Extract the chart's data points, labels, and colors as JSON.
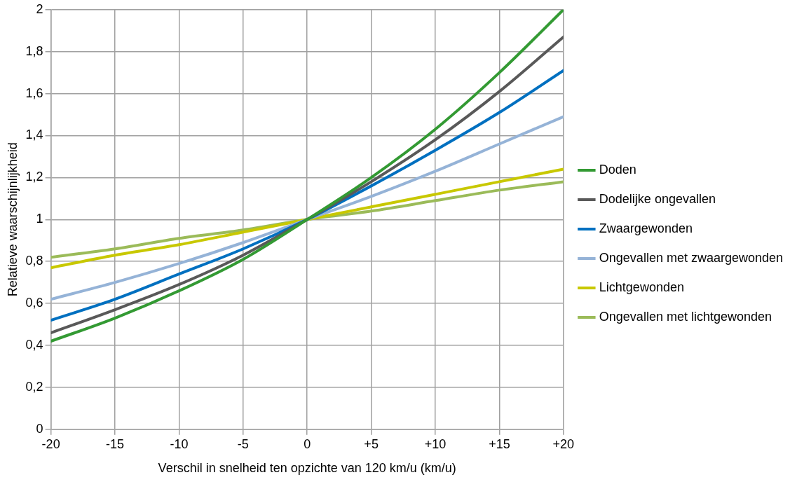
{
  "chart_data": {
    "type": "line",
    "xlabel": "Verschil in snelheid ten opzichte van 120 km/u (km/u)",
    "ylabel": "Relatieve waarschijnlijkheid",
    "x": [
      -20,
      -15,
      -10,
      -5,
      0,
      5,
      10,
      15,
      20
    ],
    "series": [
      {
        "name": "Doden",
        "color": "#339a33",
        "values": [
          0.42,
          0.53,
          0.66,
          0.81,
          1,
          1.2,
          1.43,
          1.7,
          2.0
        ]
      },
      {
        "name": "Dodelijke ongevallen",
        "color": "#595959",
        "values": [
          0.46,
          0.57,
          0.69,
          0.83,
          1,
          1.18,
          1.38,
          1.61,
          1.87
        ]
      },
      {
        "name": "Zwaargewonden",
        "color": "#0070c0",
        "values": [
          0.52,
          0.62,
          0.74,
          0.86,
          1,
          1.16,
          1.33,
          1.51,
          1.71
        ]
      },
      {
        "name": "Ongevallen met zwaargewonden",
        "color": "#95b3d7",
        "values": [
          0.62,
          0.7,
          0.79,
          0.89,
          1,
          1.11,
          1.23,
          1.36,
          1.49
        ]
      },
      {
        "name": "Lichtgewonden",
        "color": "#c8c800",
        "values": [
          0.77,
          0.83,
          0.88,
          0.94,
          1,
          1.06,
          1.12,
          1.18,
          1.24
        ]
      },
      {
        "name": "Ongevallen met lichtgewonden",
        "color": "#9bbb59",
        "values": [
          0.82,
          0.86,
          0.91,
          0.95,
          1,
          1.04,
          1.09,
          1.14,
          1.18
        ]
      }
    ],
    "xlim": [
      -20,
      20
    ],
    "xticks": [
      -20,
      -15,
      -10,
      -5,
      0,
      {
        "value": 5,
        "label": "+5"
      },
      {
        "value": 10,
        "label": "+10"
      },
      {
        "value": 15,
        "label": "+15"
      },
      {
        "value": 20,
        "label": "+20"
      }
    ],
    "ylim": [
      0,
      2
    ],
    "yticks": [
      0,
      {
        "value": 0.2,
        "label": "0,2"
      },
      {
        "value": 0.4,
        "label": "0,4"
      },
      {
        "value": 0.6,
        "label": "0,6"
      },
      {
        "value": 0.8,
        "label": "0,8"
      },
      1,
      {
        "value": 1.2,
        "label": "1,2"
      },
      {
        "value": 1.4,
        "label": "1,4"
      },
      {
        "value": 1.6,
        "label": "1,6"
      },
      {
        "value": 1.8,
        "label": "1,8"
      },
      2
    ],
    "grid": true,
    "legend": "right",
    "marker": "none",
    "line_style": "solid"
  }
}
